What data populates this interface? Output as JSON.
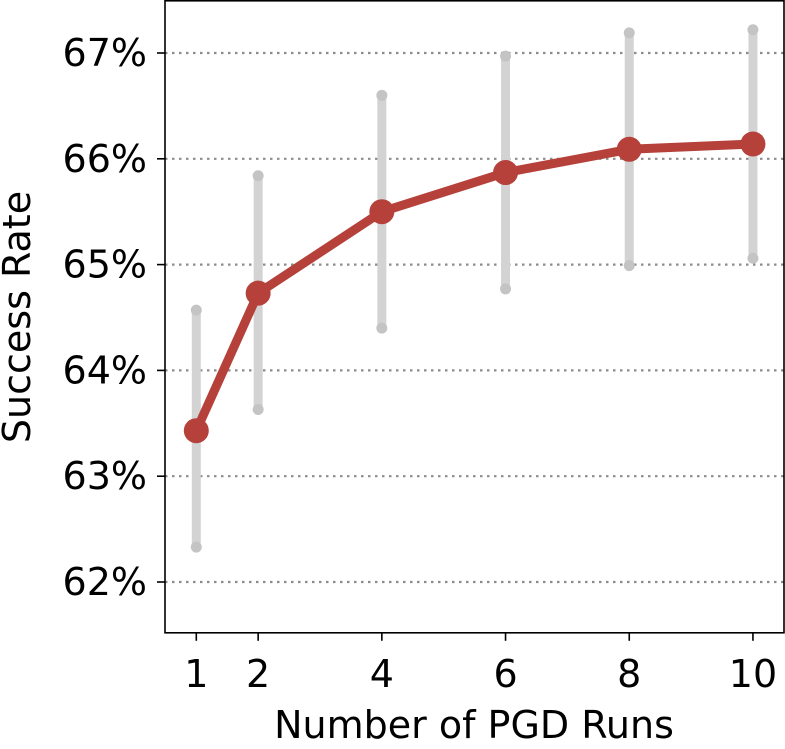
{
  "chart_data": {
    "type": "line",
    "title": "",
    "xlabel": "Number of PGD Runs",
    "ylabel": "Success Rate",
    "x": [
      1,
      2,
      4,
      6,
      8,
      10
    ],
    "x_tick_labels": [
      "1",
      "2",
      "4",
      "6",
      "8",
      "10"
    ],
    "y_ticks": [
      62,
      63,
      64,
      65,
      66,
      67
    ],
    "y_tick_labels": [
      "62%",
      "63%",
      "64%",
      "65%",
      "66%",
      "67%"
    ],
    "xlim": [
      0.5,
      10.5
    ],
    "ylim": [
      61.5,
      67.5
    ],
    "grid": "horizontal dotted",
    "series": [
      {
        "values": [
          63.43,
          64.73,
          65.5,
          65.87,
          66.09,
          66.14
        ],
        "error_low": [
          62.33,
          63.63,
          64.4,
          64.77,
          64.99,
          65.06
        ],
        "error_high": [
          64.57,
          65.84,
          66.6,
          66.97,
          67.19,
          67.22
        ],
        "color": "#b5413a",
        "error_color": "#d3d3d3"
      }
    ]
  }
}
